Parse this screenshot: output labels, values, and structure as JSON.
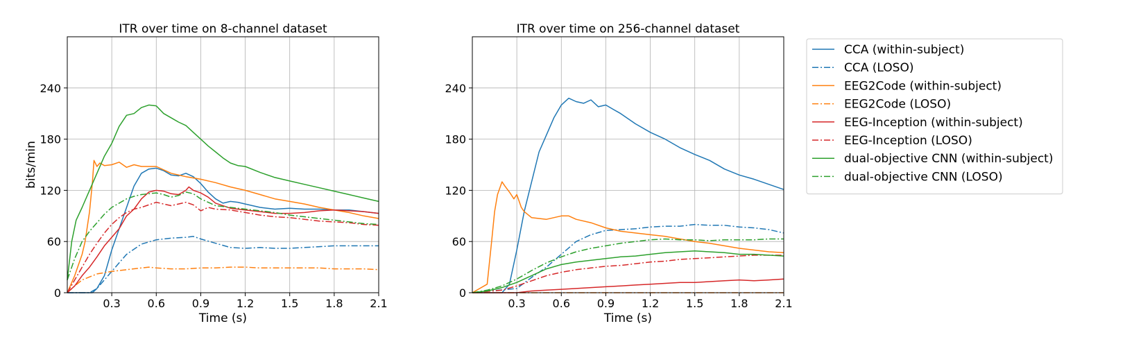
{
  "chart_data": [
    {
      "type": "line",
      "title": "ITR over time on 8-channel dataset",
      "xlabel": "Time (s)",
      "ylabel": "bits/min",
      "xlim": [
        0.0,
        2.1
      ],
      "ylim": [
        0,
        300
      ],
      "xticks": [
        0.3,
        0.6,
        0.9,
        1.2,
        1.5,
        1.8,
        2.1
      ],
      "xtick_labels": [
        "0.3",
        "0.6",
        "0.9",
        "1.2",
        "1.5",
        "1.8",
        "2.1"
      ],
      "yticks": [
        0,
        60,
        120,
        180,
        240
      ],
      "ytick_labels": [
        "0",
        "60",
        "120",
        "180",
        "240"
      ],
      "grid": true,
      "series": [
        {
          "name": "CCA (within-subject)",
          "color": "#1f77b4",
          "dash": "solid",
          "x": [
            0.0,
            0.1,
            0.17,
            0.2,
            0.25,
            0.3,
            0.35,
            0.4,
            0.45,
            0.5,
            0.55,
            0.6,
            0.65,
            0.7,
            0.75,
            0.8,
            0.85,
            0.9,
            0.95,
            1.0,
            1.05,
            1.1,
            1.15,
            1.2,
            1.3,
            1.4,
            1.5,
            1.6,
            1.7,
            1.8,
            1.9,
            2.0,
            2.1
          ],
          "y": [
            0,
            0,
            0,
            5,
            20,
            50,
            75,
            100,
            125,
            140,
            145,
            146,
            143,
            138,
            137,
            140,
            136,
            128,
            118,
            110,
            105,
            107,
            106,
            104,
            100,
            98,
            99,
            98,
            98,
            97,
            97,
            95,
            93
          ]
        },
        {
          "name": "CCA (LOSO)",
          "color": "#1f77b4",
          "dash": "dashdot",
          "x": [
            0.0,
            0.15,
            0.2,
            0.3,
            0.4,
            0.5,
            0.6,
            0.7,
            0.8,
            0.85,
            0.9,
            1.0,
            1.1,
            1.2,
            1.3,
            1.4,
            1.5,
            1.6,
            1.7,
            1.8,
            1.9,
            2.0,
            2.1
          ],
          "y": [
            0,
            0,
            5,
            25,
            45,
            57,
            62,
            64,
            65,
            66,
            63,
            58,
            53,
            52,
            53,
            52,
            52,
            53,
            54,
            55,
            55,
            55,
            55
          ]
        },
        {
          "name": "EEG2Code (within-subject)",
          "color": "#ff7f0e",
          "dash": "solid",
          "x": [
            0.0,
            0.05,
            0.1,
            0.12,
            0.15,
            0.17,
            0.18,
            0.2,
            0.22,
            0.25,
            0.3,
            0.35,
            0.4,
            0.45,
            0.5,
            0.55,
            0.6,
            0.7,
            0.8,
            0.9,
            1.0,
            1.1,
            1.2,
            1.3,
            1.4,
            1.5,
            1.6,
            1.7,
            1.8,
            1.9,
            2.0,
            2.1
          ],
          "y": [
            0,
            20,
            45,
            60,
            95,
            130,
            155,
            148,
            152,
            149,
            150,
            153,
            147,
            150,
            148,
            148,
            148,
            140,
            136,
            133,
            129,
            124,
            120,
            115,
            110,
            107,
            104,
            100,
            97,
            94,
            90,
            87
          ]
        },
        {
          "name": "EEG2Code (LOSO)",
          "color": "#ff7f0e",
          "dash": "dashdot",
          "x": [
            0.0,
            0.05,
            0.1,
            0.2,
            0.3,
            0.4,
            0.5,
            0.55,
            0.6,
            0.7,
            0.8,
            0.9,
            1.0,
            1.1,
            1.2,
            1.3,
            1.4,
            1.5,
            1.6,
            1.7,
            1.8,
            1.9,
            2.0,
            2.1
          ],
          "y": [
            0,
            8,
            15,
            22,
            25,
            27,
            29,
            30,
            29,
            28,
            28,
            29,
            29,
            30,
            30,
            29,
            29,
            29,
            29,
            29,
            28,
            28,
            28,
            27
          ]
        },
        {
          "name": "EEG-Inception (within-subject)",
          "color": "#d62728",
          "dash": "solid",
          "x": [
            0.0,
            0.05,
            0.1,
            0.15,
            0.2,
            0.25,
            0.3,
            0.35,
            0.4,
            0.45,
            0.5,
            0.55,
            0.6,
            0.65,
            0.7,
            0.75,
            0.8,
            0.82,
            0.85,
            0.9,
            0.95,
            1.0,
            1.1,
            1.2,
            1.3,
            1.4,
            1.5,
            1.6,
            1.7,
            1.8,
            1.9,
            2.0,
            2.1
          ],
          "y": [
            0,
            8,
            20,
            30,
            42,
            55,
            65,
            75,
            90,
            98,
            110,
            118,
            120,
            119,
            116,
            115,
            120,
            124,
            120,
            117,
            112,
            105,
            99,
            97,
            95,
            93,
            93,
            94,
            96,
            97,
            96,
            95,
            93
          ]
        },
        {
          "name": "EEG-Inception (LOSO)",
          "color": "#d62728",
          "dash": "dashdot",
          "x": [
            0.0,
            0.05,
            0.1,
            0.15,
            0.2,
            0.25,
            0.3,
            0.35,
            0.4,
            0.45,
            0.5,
            0.55,
            0.6,
            0.65,
            0.7,
            0.75,
            0.8,
            0.85,
            0.9,
            0.95,
            1.0,
            1.1,
            1.2,
            1.3,
            1.4,
            1.5,
            1.6,
            1.7,
            1.8,
            1.9,
            2.0,
            2.1
          ],
          "y": [
            0,
            15,
            30,
            45,
            58,
            70,
            80,
            88,
            94,
            98,
            100,
            103,
            106,
            104,
            102,
            104,
            106,
            103,
            96,
            100,
            98,
            97,
            94,
            91,
            89,
            88,
            86,
            84,
            83,
            82,
            80,
            79
          ]
        },
        {
          "name": "dual-objective CNN (within-subject)",
          "color": "#2ca02c",
          "dash": "solid",
          "x": [
            0.0,
            0.03,
            0.06,
            0.1,
            0.15,
            0.2,
            0.25,
            0.3,
            0.35,
            0.4,
            0.45,
            0.5,
            0.55,
            0.6,
            0.65,
            0.7,
            0.75,
            0.8,
            0.85,
            0.9,
            0.95,
            1.0,
            1.05,
            1.1,
            1.15,
            1.2,
            1.3,
            1.4,
            1.5,
            1.6,
            1.7,
            1.8,
            1.9,
            2.0,
            2.1
          ],
          "y": [
            15,
            60,
            85,
            100,
            120,
            140,
            160,
            175,
            195,
            208,
            210,
            217,
            220,
            219,
            210,
            205,
            200,
            196,
            188,
            180,
            172,
            165,
            158,
            152,
            149,
            148,
            141,
            135,
            131,
            127,
            123,
            119,
            115,
            111,
            107
          ]
        },
        {
          "name": "dual-objective CNN (LOSO)",
          "color": "#2ca02c",
          "dash": "dashdot",
          "x": [
            0.0,
            0.05,
            0.1,
            0.15,
            0.2,
            0.25,
            0.3,
            0.35,
            0.4,
            0.45,
            0.5,
            0.55,
            0.6,
            0.65,
            0.7,
            0.75,
            0.8,
            0.85,
            0.9,
            0.95,
            1.0,
            1.1,
            1.2,
            1.3,
            1.4,
            1.5,
            1.6,
            1.7,
            1.8,
            1.9,
            2.0,
            2.1
          ],
          "y": [
            15,
            40,
            60,
            72,
            82,
            92,
            100,
            105,
            110,
            113,
            115,
            116,
            117,
            115,
            112,
            114,
            118,
            116,
            110,
            106,
            102,
            100,
            98,
            96,
            94,
            91,
            89,
            87,
            85,
            83,
            81,
            80
          ]
        }
      ]
    },
    {
      "type": "line",
      "title": "ITR over time on 256-channel dataset",
      "xlabel": "Time (s)",
      "ylabel": "",
      "xlim": [
        0.0,
        2.1
      ],
      "ylim": [
        0,
        300
      ],
      "xticks": [
        0.3,
        0.6,
        0.9,
        1.2,
        1.5,
        1.8,
        2.1
      ],
      "xtick_labels": [
        "0.3",
        "0.6",
        "0.9",
        "1.2",
        "1.5",
        "1.8",
        "2.1"
      ],
      "yticks": [
        0,
        60,
        120,
        180,
        240
      ],
      "ytick_labels": [
        "0",
        "60",
        "120",
        "180",
        "240"
      ],
      "grid": true,
      "series": [
        {
          "name": "CCA (within-subject)",
          "color": "#1f77b4",
          "dash": "solid",
          "x": [
            0.0,
            0.2,
            0.25,
            0.3,
            0.35,
            0.4,
            0.45,
            0.5,
            0.55,
            0.6,
            0.65,
            0.7,
            0.75,
            0.8,
            0.85,
            0.9,
            0.95,
            1.0,
            1.1,
            1.2,
            1.3,
            1.4,
            1.5,
            1.6,
            1.7,
            1.8,
            1.9,
            2.0,
            2.1
          ],
          "y": [
            0,
            0,
            10,
            50,
            95,
            130,
            165,
            185,
            205,
            220,
            228,
            224,
            222,
            226,
            218,
            220,
            215,
            210,
            198,
            188,
            180,
            170,
            162,
            155,
            145,
            138,
            133,
            127,
            121
          ]
        },
        {
          "name": "CCA (LOSO)",
          "color": "#1f77b4",
          "dash": "dashdot",
          "x": [
            0.0,
            0.3,
            0.4,
            0.5,
            0.6,
            0.7,
            0.8,
            0.9,
            1.0,
            1.1,
            1.2,
            1.3,
            1.4,
            1.5,
            1.6,
            1.7,
            1.8,
            1.9,
            2.0,
            2.1
          ],
          "y": [
            0,
            5,
            18,
            30,
            45,
            60,
            68,
            73,
            74,
            75,
            77,
            78,
            78,
            80,
            79,
            79,
            77,
            76,
            74,
            70
          ]
        },
        {
          "name": "EEG2Code (within-subject)",
          "color": "#ff7f0e",
          "dash": "solid",
          "x": [
            0.0,
            0.1,
            0.13,
            0.15,
            0.17,
            0.2,
            0.22,
            0.25,
            0.28,
            0.3,
            0.33,
            0.35,
            0.4,
            0.5,
            0.6,
            0.65,
            0.7,
            0.8,
            0.9,
            1.0,
            1.1,
            1.2,
            1.3,
            1.4,
            1.5,
            1.6,
            1.7,
            1.8,
            1.9,
            2.0,
            2.1
          ],
          "y": [
            0,
            10,
            60,
            95,
            115,
            130,
            125,
            118,
            110,
            115,
            100,
            95,
            88,
            86,
            90,
            90,
            86,
            82,
            76,
            72,
            70,
            68,
            66,
            63,
            60,
            58,
            55,
            52,
            50,
            48,
            47
          ]
        },
        {
          "name": "EEG2Code (LOSO)",
          "color": "#ff7f0e",
          "dash": "dashdot",
          "x": [
            0.0,
            0.5,
            1.0,
            1.5,
            2.1
          ],
          "y": [
            0,
            0,
            0,
            0,
            0
          ]
        },
        {
          "name": "EEG-Inception (within-subject)",
          "color": "#d62728",
          "dash": "solid",
          "x": [
            0.0,
            0.3,
            0.4,
            0.5,
            0.6,
            0.7,
            0.8,
            0.9,
            1.0,
            1.1,
            1.2,
            1.3,
            1.4,
            1.5,
            1.6,
            1.7,
            1.8,
            1.9,
            2.0,
            2.1
          ],
          "y": [
            0,
            0,
            2,
            3,
            4,
            5,
            6,
            7,
            8,
            9,
            10,
            11,
            12,
            12,
            13,
            14,
            15,
            14,
            15,
            16
          ]
        },
        {
          "name": "EEG-Inception (LOSO)",
          "color": "#d62728",
          "dash": "dashdot",
          "x": [
            0.0,
            0.2,
            0.3,
            0.4,
            0.5,
            0.6,
            0.7,
            0.8,
            0.9,
            1.0,
            1.1,
            1.2,
            1.3,
            1.4,
            1.5,
            1.6,
            1.7,
            1.8,
            1.9,
            2.0,
            2.1
          ],
          "y": [
            0,
            3,
            8,
            14,
            20,
            24,
            27,
            29,
            31,
            32,
            34,
            36,
            37,
            39,
            40,
            41,
            42,
            43,
            44,
            44,
            44
          ]
        },
        {
          "name": "dual-objective CNN (within-subject)",
          "color": "#2ca02c",
          "dash": "solid",
          "x": [
            0.0,
            0.1,
            0.2,
            0.3,
            0.4,
            0.5,
            0.6,
            0.7,
            0.8,
            0.9,
            1.0,
            1.1,
            1.2,
            1.3,
            1.4,
            1.5,
            1.6,
            1.7,
            1.8,
            1.9,
            2.0,
            2.1
          ],
          "y": [
            0,
            2,
            6,
            12,
            20,
            28,
            33,
            36,
            38,
            40,
            42,
            43,
            45,
            47,
            48,
            49,
            48,
            47,
            45,
            45,
            44,
            43
          ]
        },
        {
          "name": "dual-objective CNN (LOSO)",
          "color": "#2ca02c",
          "dash": "dashdot",
          "x": [
            0.0,
            0.1,
            0.2,
            0.3,
            0.4,
            0.5,
            0.6,
            0.7,
            0.8,
            0.9,
            1.0,
            1.1,
            1.2,
            1.3,
            1.4,
            1.5,
            1.6,
            1.7,
            1.8,
            1.9,
            2.0,
            2.1
          ],
          "y": [
            0,
            3,
            8,
            16,
            26,
            35,
            42,
            48,
            52,
            55,
            58,
            60,
            62,
            63,
            62,
            62,
            61,
            62,
            62,
            62,
            63,
            63
          ]
        }
      ]
    }
  ]
}
